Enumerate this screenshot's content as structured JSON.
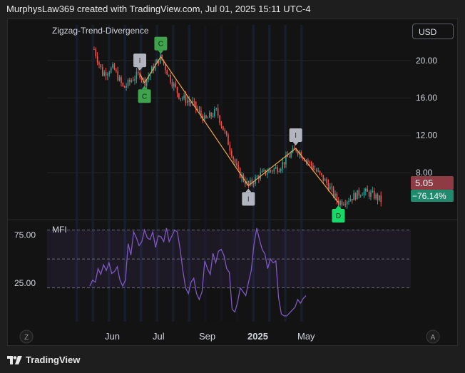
{
  "header": {
    "attribution": "MurphysLaw369 created with TradingView.com, Jul 01, 2025 15:11 UTC-4"
  },
  "toolbar": {
    "currency": "USD",
    "left_scale_button": "Z",
    "right_scale_button": "A"
  },
  "footer": {
    "brand": "TradingView",
    "logo_icon": "tradingview-logo-icon"
  },
  "colors": {
    "up": "#26a69a",
    "down": "#ef5350",
    "zigzag": "#f0a64a",
    "mfi_line": "#7e57c2",
    "last_price_bg": "#8e3b43",
    "change_bg": "#1f8a6e",
    "label_neutral": "#b2b5be",
    "label_c": "#3fa34d",
    "label_d": "#16d96a"
  },
  "chart_data": [
    {
      "type": "line",
      "indicator": "Zigzag-Trend-Divergence",
      "y_ticks": [
        20.0,
        16.0,
        12.0,
        8.0
      ],
      "x_ticks": [
        "Jun",
        "Jul",
        "Sep",
        "2025",
        "May"
      ],
      "ylim": [
        3.2,
        23.8
      ],
      "last_price": "5.05",
      "change": "−76.14%",
      "approx_price_path": [
        {
          "x": "2024-04-20",
          "y": 21.2
        },
        {
          "x": "2024-05-01",
          "y": 18.6
        },
        {
          "x": "2024-05-15",
          "y": 19.2
        },
        {
          "x": "2024-05-28",
          "y": 17.0
        },
        {
          "x": "2024-06-08",
          "y": 18.0
        },
        {
          "x": "2024-06-18",
          "y": 18.6
        },
        {
          "x": "2024-06-24",
          "y": 17.6
        },
        {
          "x": "2024-07-05",
          "y": 19.2
        },
        {
          "x": "2024-07-15",
          "y": 20.4
        },
        {
          "x": "2024-07-25",
          "y": 18.4
        },
        {
          "x": "2024-08-08",
          "y": 16.2
        },
        {
          "x": "2024-08-25",
          "y": 15.4
        },
        {
          "x": "2024-09-10",
          "y": 13.6
        },
        {
          "x": "2024-09-25",
          "y": 14.6
        },
        {
          "x": "2024-10-10",
          "y": 11.2
        },
        {
          "x": "2024-10-22",
          "y": 8.2
        },
        {
          "x": "2024-11-05",
          "y": 6.6
        },
        {
          "x": "2024-11-20",
          "y": 7.8
        },
        {
          "x": "2024-12-15",
          "y": 8.6
        },
        {
          "x": "2025-01-05",
          "y": 10.6
        },
        {
          "x": "2025-01-25",
          "y": 8.8
        },
        {
          "x": "2025-02-15",
          "y": 6.8
        },
        {
          "x": "2025-03-01",
          "y": 4.8
        },
        {
          "x": "2025-03-15",
          "y": 5.2
        },
        {
          "x": "2025-04-01",
          "y": 6.0
        },
        {
          "x": "2025-04-15",
          "y": 5.6
        },
        {
          "x": "2025-04-25",
          "y": 5.05
        }
      ],
      "zigzag_pivots": [
        {
          "x": "2024-06-18",
          "y": 18.6,
          "label": "I"
        },
        {
          "x": "2024-06-24",
          "y": 17.6,
          "label": "C"
        },
        {
          "x": "2024-07-15",
          "y": 20.4,
          "label": "C"
        },
        {
          "x": "2024-11-05",
          "y": 6.6,
          "label": "I"
        },
        {
          "x": "2025-01-05",
          "y": 10.6,
          "label": "I"
        },
        {
          "x": "2025-03-01",
          "y": 4.8,
          "label": "D"
        }
      ]
    },
    {
      "type": "line",
      "indicator": "MFI",
      "y_ticks": [
        75.0,
        25.0
      ],
      "ylim": [
        -15,
        90
      ],
      "levels": [
        80,
        50,
        20
      ],
      "series": [
        {
          "values": [
            22,
            28,
            26,
            40,
            34,
            44,
            38,
            46,
            35,
            37,
            42,
            28,
            22,
            28,
            66,
            54,
            78,
            72,
            64,
            68,
            80,
            72,
            70,
            78,
            62,
            74,
            73,
            68,
            82,
            68,
            74,
            80,
            78,
            60,
            38,
            20,
            14,
            26,
            30,
            14,
            8,
            16,
            48,
            40,
            34,
            56,
            46,
            58,
            60,
            54,
            40,
            36,
            -2,
            -5,
            5,
            20,
            16,
            12,
            26,
            38,
            65,
            82,
            70,
            60,
            55,
            40,
            50,
            46,
            48,
            10,
            -7,
            -9,
            -9,
            -6,
            -3,
            0,
            8,
            4,
            9,
            12
          ]
        }
      ]
    }
  ]
}
